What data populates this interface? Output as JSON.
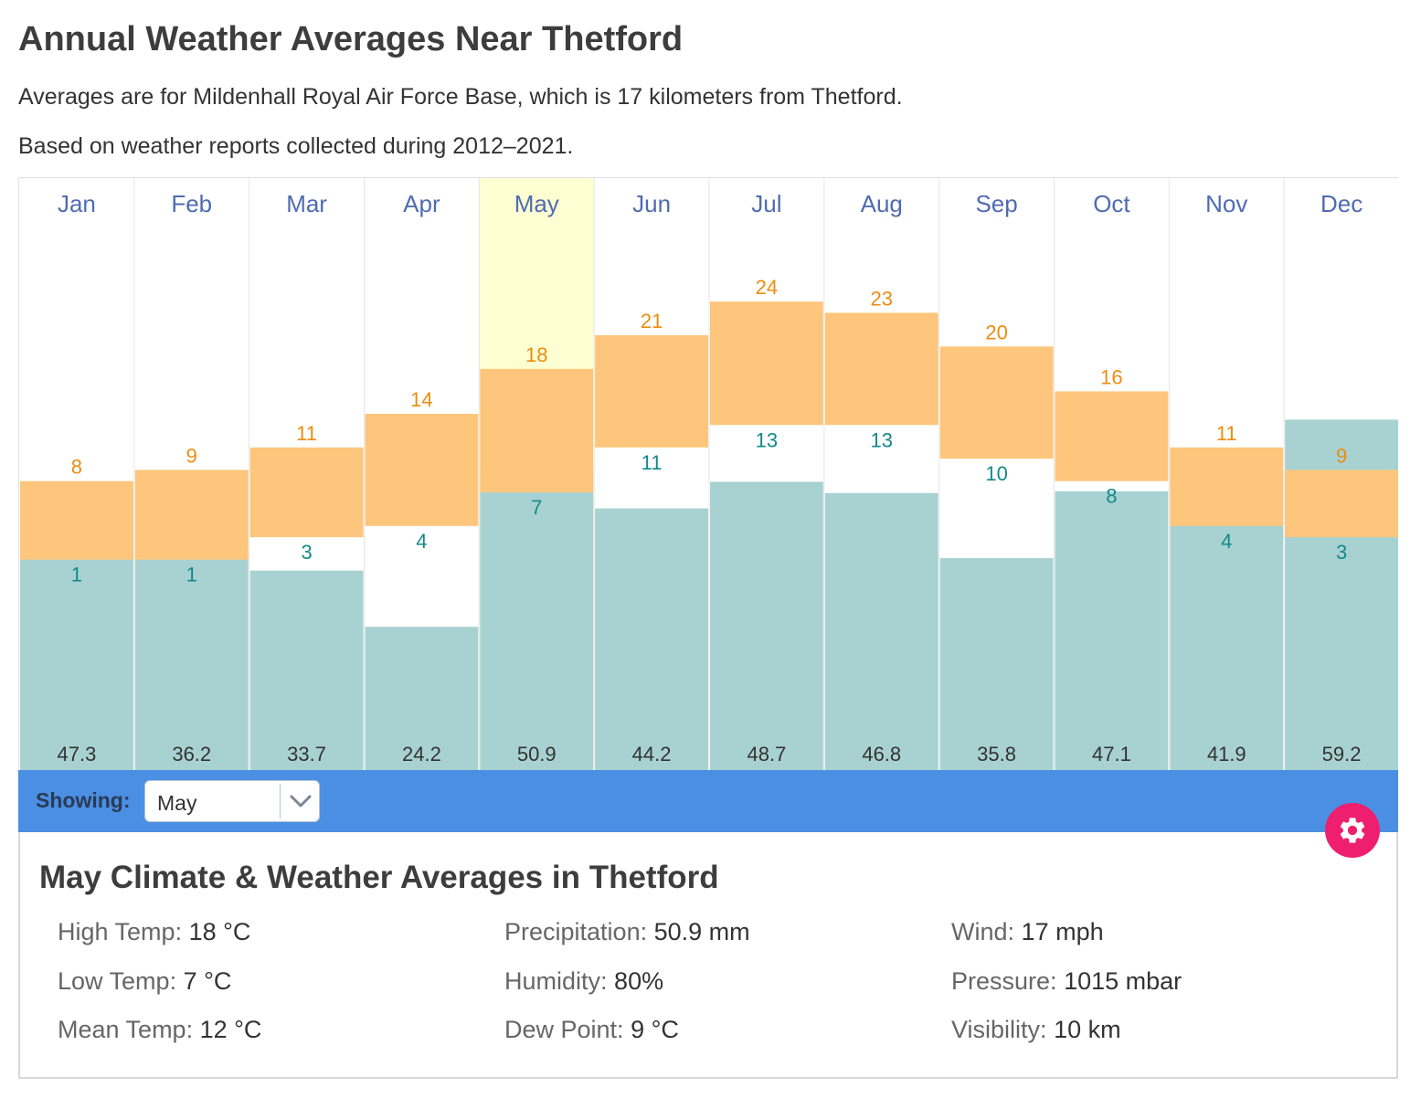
{
  "page": {
    "title": "Annual Weather Averages Near Thetford",
    "description": "Averages are for Mildenhall Royal Air Force Base, which is 17 kilometers from Thetford.",
    "period": "Based on weather reports collected during 2012–2021."
  },
  "colors": {
    "temp_band": "#fdc67c",
    "high_label": "#ec8d10",
    "low_label": "#13898a",
    "precip_bar": "#a8d2d1",
    "month_label": "#4f6bb3",
    "selected_bg": "#fdfed2",
    "control_bar": "#4a8fe3",
    "gear_button": "#ee1f6e"
  },
  "chart_data": {
    "type": "bar",
    "categories": [
      "Jan",
      "Feb",
      "Mar",
      "Apr",
      "May",
      "Jun",
      "Jul",
      "Aug",
      "Sep",
      "Oct",
      "Nov",
      "Dec"
    ],
    "selected": "May",
    "series": [
      {
        "values": [
          8,
          9,
          11,
          14,
          18,
          21,
          24,
          23,
          20,
          16,
          11,
          9
        ]
      },
      {
        "values": [
          1,
          1,
          3,
          4,
          7,
          11,
          13,
          13,
          10,
          8,
          4,
          3
        ]
      },
      {
        "values": [
          47.3,
          36.2,
          33.7,
          24.2,
          50.9,
          44.2,
          48.7,
          46.8,
          35.8,
          47.1,
          41.9,
          59.2
        ]
      }
    ],
    "temp_range": [
      -17.75,
      35
    ],
    "precip_max": 100
  },
  "controls": {
    "showing_label": "Showing:",
    "selected_month": "May",
    "dropdown_icon": "chevron-down-icon",
    "settings_icon": "gear-icon"
  },
  "details": {
    "title": "May Climate & Weather Averages in Thetford",
    "stats": [
      {
        "label": "High Temp:",
        "value": "18 °C"
      },
      {
        "label": "Low Temp:",
        "value": "7 °C"
      },
      {
        "label": "Mean Temp:",
        "value": "12 °C"
      },
      {
        "label": "Precipitation:",
        "value": "50.9 mm"
      },
      {
        "label": "Humidity:",
        "value": "80%"
      },
      {
        "label": "Dew Point:",
        "value": "9 °C"
      },
      {
        "label": "Wind:",
        "value": "17 mph"
      },
      {
        "label": "Pressure:",
        "value": "1015 mbar"
      },
      {
        "label": "Visibility:",
        "value": "10 km"
      }
    ]
  }
}
